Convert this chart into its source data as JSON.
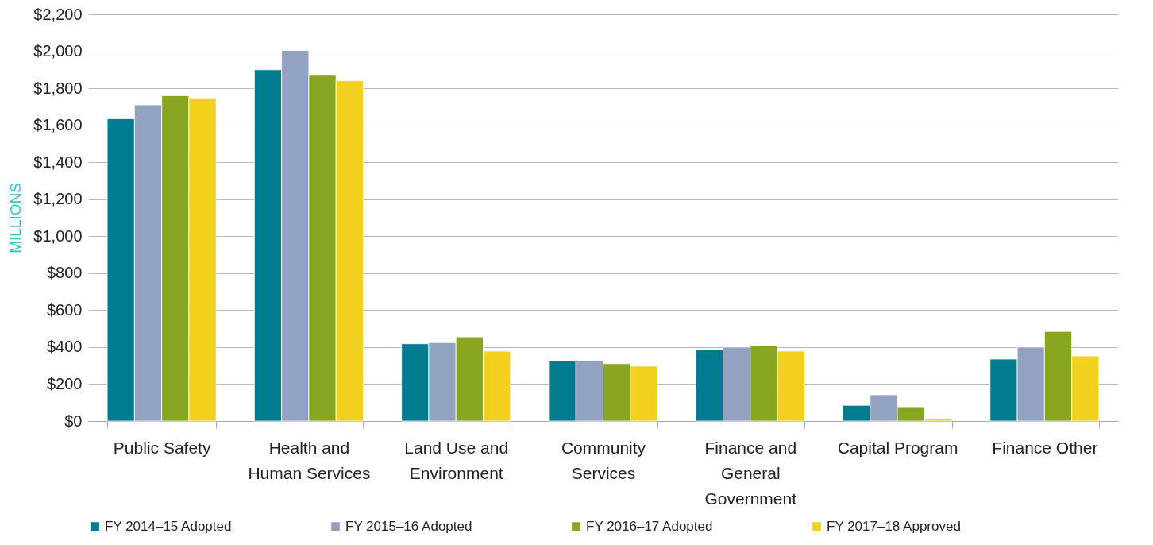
{
  "chart_data": {
    "type": "bar",
    "ylabel": "MILLIONS",
    "categories": [
      "Public Safety",
      "Health and Human Services",
      "Land Use and Environment",
      "Community Services",
      "Finance and General Government",
      "Capital Program",
      "Finance Other"
    ],
    "series": [
      {
        "name": "FY 2014–15 Adopted",
        "color": "#007b8f",
        "values": [
          1635,
          1900,
          418,
          325,
          385,
          85,
          335
        ]
      },
      {
        "name": "FY 2015–16 Adopted",
        "color": "#91a3c1",
        "values": [
          1710,
          2005,
          424,
          328,
          400,
          142,
          400
        ]
      },
      {
        "name": "FY 2016–17 Adopted",
        "color": "#88a622",
        "values": [
          1760,
          1870,
          455,
          310,
          408,
          77,
          485
        ]
      },
      {
        "name": "FY 2017–18 Approved",
        "color": "#f2d01e",
        "values": [
          1748,
          1840,
          378,
          297,
          378,
          12,
          352
        ]
      }
    ],
    "ylim": [
      0,
      2200
    ],
    "yticks": [
      {
        "value": 0,
        "label": "$0"
      },
      {
        "value": 200,
        "label": "$200"
      },
      {
        "value": 400,
        "label": "$400"
      },
      {
        "value": 600,
        "label": "$600"
      },
      {
        "value": 800,
        "label": "$800"
      },
      {
        "value": 1000,
        "label": "$1,000"
      },
      {
        "value": 1200,
        "label": "$1,200"
      },
      {
        "value": 1400,
        "label": "$1,400"
      },
      {
        "value": 1600,
        "label": "$1,600"
      },
      {
        "value": 1800,
        "label": "$1,800"
      },
      {
        "value": 2000,
        "label": "$2,000"
      },
      {
        "value": 2200,
        "label": "$2,200"
      }
    ],
    "grid": "y",
    "legend": "bottom"
  }
}
